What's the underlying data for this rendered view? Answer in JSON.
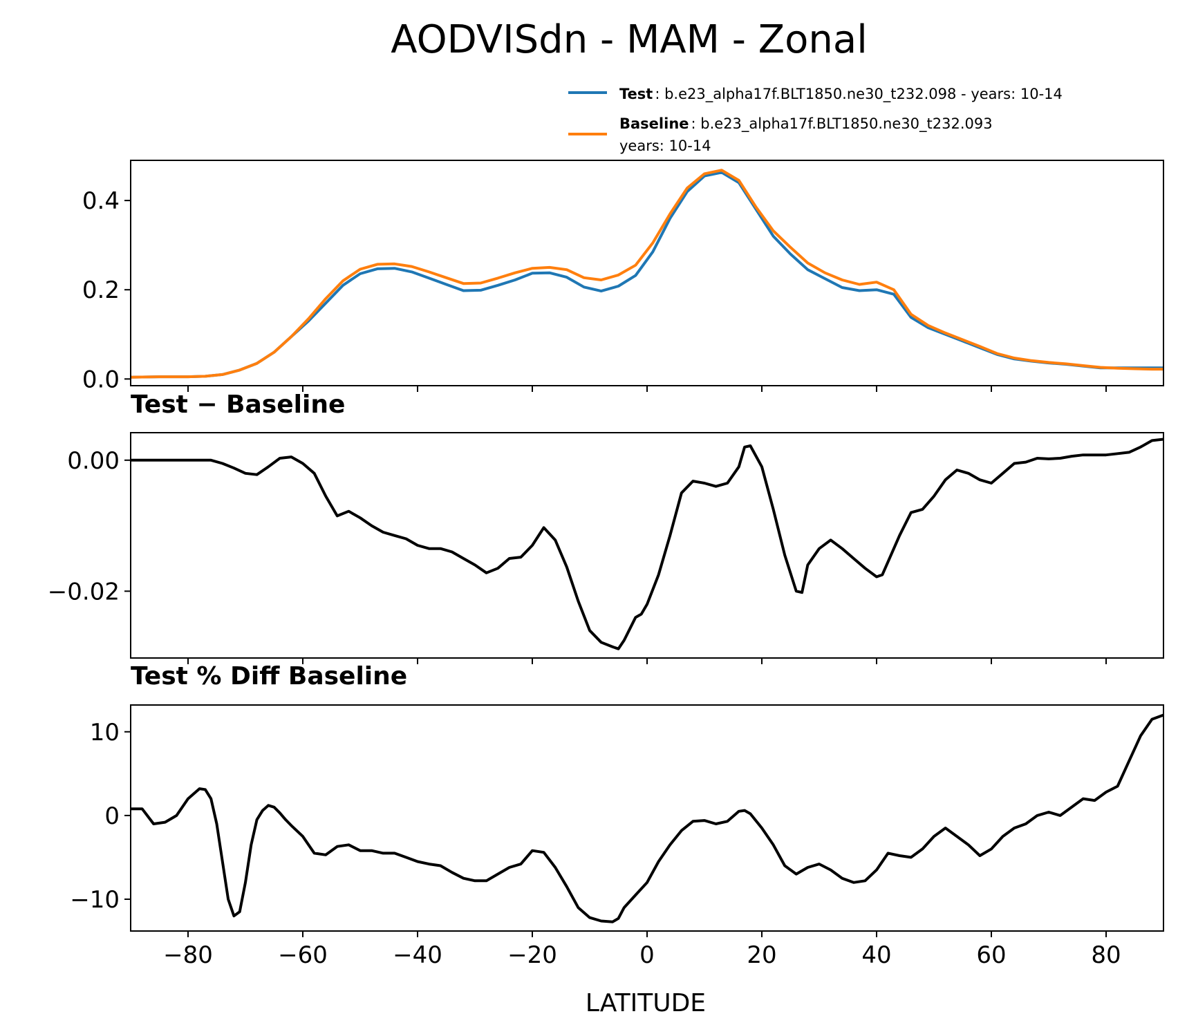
{
  "title": "AODVISdn - MAM - Zonal",
  "legend": {
    "test_label": "Test",
    "test_text": ": b.e23_alpha17f.BLT1850.ne30_t232.098 - years: 10-14",
    "baseline_label": "Baseline",
    "baseline_text": ": b.e23_alpha17f.BLT1850.ne30_t232.093",
    "baseline_text2": "years: 10-14"
  },
  "colors": {
    "test": "#1f77b4",
    "baseline": "#ff7f0e",
    "diff": "#000000"
  },
  "chart_data": [
    {
      "type": "line",
      "panel": "main",
      "title": "",
      "xlabel": "",
      "ylabel": "",
      "xlim": [
        -90,
        90
      ],
      "ylim": [
        -0.015,
        0.49
      ],
      "yticks": [
        0.0,
        0.2,
        0.4
      ],
      "ytick_labels": [
        "0.0",
        "0.2",
        "0.4"
      ],
      "x": [
        -90,
        -85,
        -80,
        -77,
        -74,
        -71,
        -68,
        -65,
        -62,
        -59,
        -56,
        -53,
        -50,
        -47,
        -44,
        -41,
        -38,
        -35,
        -32,
        -29,
        -26,
        -23,
        -20,
        -17,
        -14,
        -11,
        -8,
        -5,
        -2,
        1,
        4,
        7,
        10,
        13,
        16,
        19,
        22,
        25,
        28,
        31,
        34,
        37,
        40,
        43,
        46,
        49,
        52,
        55,
        58,
        61,
        64,
        67,
        70,
        73,
        76,
        79,
        82,
        85,
        88,
        90
      ],
      "series": [
        {
          "name": "Test",
          "values": [
            0.004,
            0.005,
            0.005,
            0.006,
            0.01,
            0.02,
            0.035,
            0.06,
            0.095,
            0.13,
            0.17,
            0.21,
            0.236,
            0.247,
            0.248,
            0.24,
            0.226,
            0.212,
            0.198,
            0.199,
            0.21,
            0.222,
            0.237,
            0.238,
            0.228,
            0.206,
            0.197,
            0.208,
            0.232,
            0.285,
            0.36,
            0.42,
            0.455,
            0.463,
            0.44,
            0.38,
            0.32,
            0.28,
            0.245,
            0.225,
            0.205,
            0.198,
            0.2,
            0.19,
            0.138,
            0.115,
            0.1,
            0.085,
            0.07,
            0.055,
            0.045,
            0.04,
            0.036,
            0.033,
            0.029,
            0.025,
            0.025,
            0.025,
            0.025,
            0.025
          ]
        },
        {
          "name": "Baseline",
          "values": [
            0.004,
            0.005,
            0.005,
            0.006,
            0.01,
            0.02,
            0.035,
            0.06,
            0.095,
            0.135,
            0.18,
            0.22,
            0.246,
            0.257,
            0.258,
            0.252,
            0.24,
            0.227,
            0.214,
            0.215,
            0.226,
            0.238,
            0.248,
            0.25,
            0.245,
            0.227,
            0.222,
            0.233,
            0.255,
            0.305,
            0.37,
            0.428,
            0.46,
            0.468,
            0.445,
            0.385,
            0.332,
            0.295,
            0.26,
            0.238,
            0.222,
            0.212,
            0.217,
            0.2,
            0.145,
            0.12,
            0.103,
            0.088,
            0.073,
            0.057,
            0.047,
            0.041,
            0.037,
            0.034,
            0.03,
            0.026,
            0.024,
            0.023,
            0.022,
            0.022
          ]
        }
      ]
    },
    {
      "type": "line",
      "panel": "diff",
      "title": "Test − Baseline",
      "xlim": [
        -90,
        90
      ],
      "ylim": [
        -0.0302,
        0.0042
      ],
      "yticks": [
        0.0,
        -0.02
      ],
      "ytick_labels": [
        "0.00",
        "−0.02"
      ],
      "x": [
        -90,
        -86,
        -82,
        -78,
        -76,
        -74,
        -72,
        -70,
        -68,
        -66,
        -64,
        -62,
        -60,
        -58,
        -56,
        -54,
        -52,
        -50,
        -48,
        -46,
        -44,
        -42,
        -40,
        -38,
        -36,
        -34,
        -32,
        -30,
        -28,
        -26,
        -24,
        -22,
        -20,
        -18,
        -16,
        -14,
        -12,
        -10,
        -8,
        -6,
        -5,
        -4,
        -2,
        -1,
        0,
        2,
        4,
        6,
        8,
        10,
        12,
        14,
        16,
        17,
        18,
        20,
        22,
        24,
        26,
        27,
        28,
        30,
        32,
        34,
        36,
        38,
        40,
        41,
        42,
        44,
        46,
        48,
        50,
        52,
        54,
        56,
        58,
        60,
        62,
        64,
        66,
        68,
        70,
        72,
        74,
        76,
        78,
        80,
        82,
        84,
        86,
        88,
        90
      ],
      "series": [
        {
          "name": "Test − Baseline",
          "values": [
            0.0,
            0.0,
            0.0,
            0.0,
            0.0,
            -0.0005,
            -0.0012,
            -0.002,
            -0.0022,
            -0.001,
            0.0003,
            0.0005,
            -0.0005,
            -0.002,
            -0.0055,
            -0.0085,
            -0.0078,
            -0.0088,
            -0.01,
            -0.011,
            -0.0115,
            -0.012,
            -0.013,
            -0.0135,
            -0.0135,
            -0.014,
            -0.015,
            -0.016,
            -0.0172,
            -0.0165,
            -0.015,
            -0.0148,
            -0.013,
            -0.0103,
            -0.0122,
            -0.0163,
            -0.0215,
            -0.026,
            -0.0278,
            -0.0285,
            -0.0288,
            -0.0275,
            -0.024,
            -0.0235,
            -0.022,
            -0.0175,
            -0.0115,
            -0.005,
            -0.0032,
            -0.0035,
            -0.004,
            -0.0035,
            -0.001,
            0.002,
            0.0022,
            -0.001,
            -0.0075,
            -0.0145,
            -0.02,
            -0.0202,
            -0.016,
            -0.0135,
            -0.0122,
            -0.0135,
            -0.015,
            -0.0165,
            -0.0178,
            -0.0175,
            -0.0155,
            -0.0115,
            -0.008,
            -0.0075,
            -0.0055,
            -0.003,
            -0.0015,
            -0.002,
            -0.003,
            -0.0035,
            -0.002,
            -0.0005,
            -0.0003,
            0.0003,
            0.0002,
            0.0003,
            0.0006,
            0.0008,
            0.0008,
            0.0008,
            0.001,
            0.0012,
            0.002,
            0.003,
            0.0032
          ]
        }
      ]
    },
    {
      "type": "line",
      "panel": "pctdiff",
      "title": "Test % Diff Baseline",
      "xlim": [
        -90,
        90
      ],
      "ylim": [
        -13.8,
        13.2
      ],
      "yticks": [
        10,
        0,
        -10
      ],
      "ytick_labels": [
        "10",
        "0",
        "−10"
      ],
      "xticks": [
        -80,
        -60,
        -40,
        -20,
        0,
        20,
        40,
        60,
        80
      ],
      "xtick_labels": [
        "−80",
        "−60",
        "−40",
        "−20",
        "0",
        "20",
        "40",
        "60",
        "80"
      ],
      "xlabel": "LATITUDE",
      "x": [
        -90,
        -88,
        -86,
        -84,
        -82,
        -80,
        -78,
        -77,
        -76,
        -75,
        -74,
        -73,
        -72,
        -71,
        -70,
        -69,
        -68,
        -67,
        -66,
        -65,
        -64,
        -63,
        -62,
        -60,
        -58,
        -56,
        -54,
        -52,
        -50,
        -48,
        -46,
        -44,
        -42,
        -40,
        -38,
        -36,
        -34,
        -32,
        -30,
        -28,
        -26,
        -24,
        -22,
        -20,
        -18,
        -16,
        -14,
        -12,
        -10,
        -8,
        -6,
        -5,
        -4,
        -2,
        0,
        2,
        4,
        6,
        8,
        10,
        12,
        14,
        16,
        17,
        18,
        20,
        22,
        24,
        26,
        28,
        30,
        32,
        34,
        36,
        38,
        40,
        42,
        44,
        46,
        48,
        50,
        52,
        54,
        56,
        58,
        60,
        62,
        64,
        66,
        68,
        70,
        72,
        74,
        76,
        78,
        80,
        82,
        84,
        86,
        88,
        90
      ],
      "series": [
        {
          "name": "Test % Diff Baseline",
          "values": [
            0.8,
            0.8,
            -1.0,
            -0.8,
            0.0,
            2.0,
            3.2,
            3.1,
            2.0,
            -1.0,
            -5.5,
            -10.0,
            -12.0,
            -11.5,
            -8.0,
            -3.5,
            -0.5,
            0.6,
            1.2,
            1.0,
            0.3,
            -0.5,
            -1.2,
            -2.5,
            -4.5,
            -4.7,
            -3.7,
            -3.5,
            -4.2,
            -4.2,
            -4.5,
            -4.5,
            -5.0,
            -5.5,
            -5.8,
            -6.0,
            -6.8,
            -7.5,
            -7.8,
            -7.8,
            -7.0,
            -6.2,
            -5.8,
            -4.2,
            -4.4,
            -6.2,
            -8.5,
            -11.0,
            -12.2,
            -12.6,
            -12.7,
            -12.3,
            -11.0,
            -9.5,
            -8.0,
            -5.5,
            -3.5,
            -1.8,
            -0.7,
            -0.6,
            -1.0,
            -0.7,
            0.5,
            0.6,
            0.2,
            -1.5,
            -3.5,
            -6.0,
            -7.0,
            -6.2,
            -5.8,
            -6.5,
            -7.5,
            -8.0,
            -7.8,
            -6.5,
            -4.5,
            -4.8,
            -5.0,
            -4.0,
            -2.5,
            -1.5,
            -2.5,
            -3.5,
            -4.8,
            -4.0,
            -2.5,
            -1.5,
            -1.0,
            0.0,
            0.4,
            0.0,
            1.0,
            2.0,
            1.8,
            2.8,
            3.5,
            6.5,
            9.5,
            11.5,
            12.0
          ]
        }
      ]
    }
  ]
}
